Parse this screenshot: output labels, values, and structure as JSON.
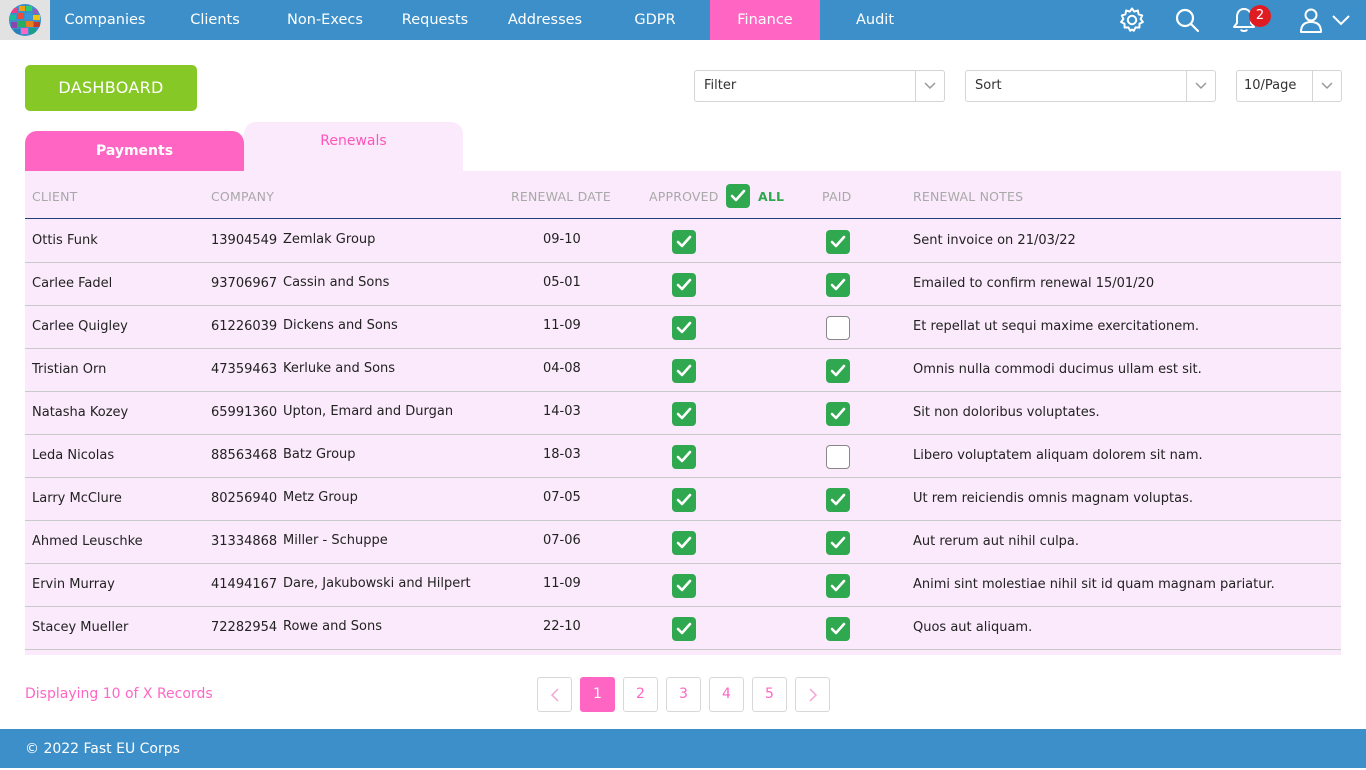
{
  "nav": {
    "items": [
      {
        "label": "Companies"
      },
      {
        "label": "Clients"
      },
      {
        "label": "Non-Execs"
      },
      {
        "label": "Requests"
      },
      {
        "label": "Addresses"
      },
      {
        "label": "GDPR"
      },
      {
        "label": "Finance",
        "active": true
      },
      {
        "label": "Audit"
      }
    ],
    "icons": [
      "settings-gear-icon",
      "search-icon",
      "bell-icon",
      "user-icon",
      "chevron-down-icon"
    ],
    "notification_count": "2",
    "colors": {
      "bar": "#3d8fc9",
      "active": "#ff66c4",
      "badge": "#e01c23"
    }
  },
  "dashboard_button": "DASHBOARD",
  "controls": {
    "filter": "Filter",
    "sort": "Sort",
    "per_page": "10/Page"
  },
  "tabs": {
    "payments": "Payments",
    "renewals": "Renewals",
    "active": "Renewals"
  },
  "table": {
    "headers": {
      "client": "CLIENT",
      "company": "COMPANY",
      "renewal_date": "RENEWAL DATE",
      "approved": "APPROVED",
      "all": "ALL",
      "paid": "PAID",
      "notes": "RENEWAL NOTES"
    },
    "rows": [
      {
        "client": "Ottis Funk",
        "number": "13904549",
        "company": "Zemlak Group",
        "date": "09-10",
        "approved": true,
        "paid": true,
        "notes": "Sent invoice on 21/03/22"
      },
      {
        "client": "Carlee Fadel",
        "number": "93706967",
        "company": "Cassin and Sons",
        "date": "05-01",
        "approved": true,
        "paid": true,
        "notes": "Emailed to confirm renewal 15/01/20"
      },
      {
        "client": "Carlee Quigley",
        "number": "61226039",
        "company": "Dickens and Sons",
        "date": "11-09",
        "approved": true,
        "paid": false,
        "notes": "Et repellat ut sequi maxime exercitationem."
      },
      {
        "client": "Tristian Orn",
        "number": "47359463",
        "company": "Kerluke and Sons",
        "date": "04-08",
        "approved": true,
        "paid": true,
        "notes": "Omnis nulla commodi ducimus ullam est sit."
      },
      {
        "client": "Natasha Kozey",
        "number": "65991360",
        "company": "Upton, Emard and Durgan",
        "date": "14-03",
        "approved": true,
        "paid": true,
        "notes": "Sit non doloribus voluptates."
      },
      {
        "client": "Leda Nicolas",
        "number": "88563468",
        "company": "Batz Group",
        "date": "18-03",
        "approved": true,
        "paid": false,
        "notes": "Libero voluptatem aliquam dolorem sit nam."
      },
      {
        "client": "Larry McClure",
        "number": "80256940",
        "company": "Metz Group",
        "date": "07-05",
        "approved": true,
        "paid": true,
        "notes": "Ut rem reiciendis omnis magnam voluptas."
      },
      {
        "client": "Ahmed Leuschke",
        "number": "31334868",
        "company": "Miller - Schuppe",
        "date": "07-06",
        "approved": true,
        "paid": true,
        "notes": "Aut rerum aut nihil culpa."
      },
      {
        "client": "Ervin Murray",
        "number": "41494167",
        "company": "Dare, Jakubowski and Hilpert",
        "date": "11-09",
        "approved": true,
        "paid": true,
        "notes": "Animi sint molestiae nihil sit id quam magnam pariatur."
      },
      {
        "client": "Stacey Mueller",
        "number": "72282954",
        "company": "Rowe and Sons",
        "date": "22-10",
        "approved": true,
        "paid": true,
        "notes": "Quos aut aliquam."
      }
    ]
  },
  "pagination": {
    "display_text": "Displaying 10 of X Records",
    "pages": [
      "1",
      "2",
      "3",
      "4",
      "5"
    ],
    "current": "1"
  },
  "footer": {
    "copyright": "© 2022 Fast EU Corps"
  }
}
